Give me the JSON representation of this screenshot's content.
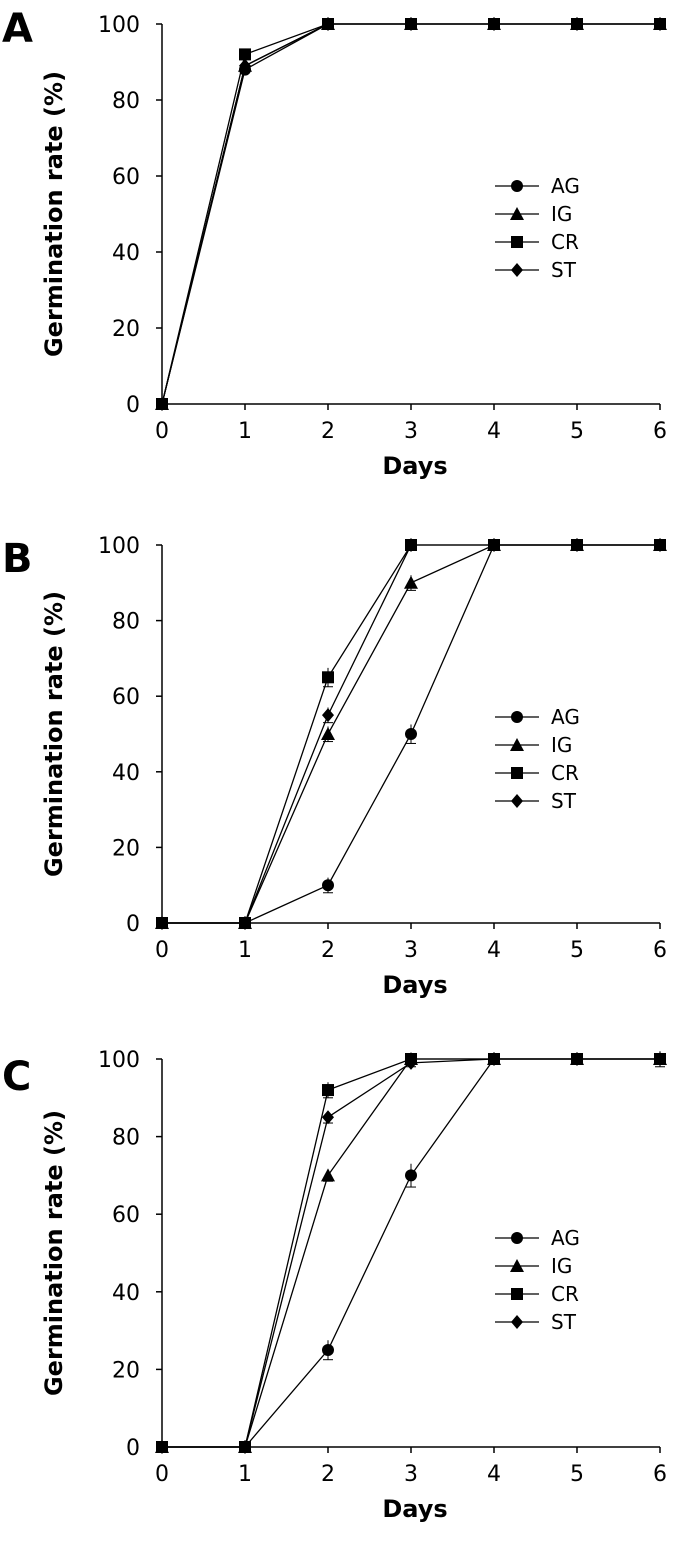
{
  "chart_data": [
    {
      "type": "line",
      "panel": "A",
      "xlabel": "Days",
      "ylabel": "Germination rate (%)",
      "x": [
        0,
        1,
        2,
        3,
        4,
        5,
        6
      ],
      "xticks": [
        "0",
        "1",
        "2",
        "3",
        "4",
        "5",
        "6"
      ],
      "yticks": [
        "0",
        "20",
        "40",
        "60",
        "80",
        "100"
      ],
      "xlim": [
        0,
        6
      ],
      "ylim": [
        0,
        100
      ],
      "grid": false,
      "legend_position": "right-middle",
      "series": [
        {
          "name": "AG",
          "marker": "circle",
          "values": [
            0,
            88,
            100,
            100,
            100,
            100,
            100
          ]
        },
        {
          "name": "IG",
          "marker": "triangle",
          "values": [
            0,
            89,
            100,
            100,
            100,
            100,
            100
          ]
        },
        {
          "name": "CR",
          "marker": "square",
          "values": [
            0,
            92,
            100,
            100,
            100,
            100,
            100
          ]
        },
        {
          "name": "ST",
          "marker": "diamond",
          "values": [
            0,
            89,
            100,
            100,
            100,
            100,
            100
          ]
        }
      ]
    },
    {
      "type": "line",
      "panel": "B",
      "xlabel": "Days",
      "ylabel": "Germination rate (%)",
      "x": [
        0,
        1,
        2,
        3,
        4,
        5,
        6
      ],
      "xticks": [
        "0",
        "1",
        "2",
        "3",
        "4",
        "5",
        "6"
      ],
      "yticks": [
        "0",
        "20",
        "40",
        "60",
        "80",
        "100"
      ],
      "xlim": [
        0,
        6
      ],
      "ylim": [
        0,
        100
      ],
      "grid": false,
      "legend_position": "right-middle",
      "series": [
        {
          "name": "AG",
          "marker": "circle",
          "values": [
            0,
            0,
            10,
            50,
            100,
            100,
            100
          ],
          "errors": [
            0,
            0,
            2,
            2.5,
            0,
            0,
            0
          ]
        },
        {
          "name": "IG",
          "marker": "triangle",
          "values": [
            0,
            0,
            50,
            90,
            100,
            100,
            100
          ],
          "errors": [
            0,
            0,
            2,
            2,
            0,
            0,
            0
          ]
        },
        {
          "name": "CR",
          "marker": "square",
          "values": [
            0,
            0,
            65,
            100,
            100,
            100,
            100
          ],
          "errors": [
            0,
            0,
            2.5,
            0,
            0,
            0,
            0
          ]
        },
        {
          "name": "ST",
          "marker": "diamond",
          "values": [
            0,
            0,
            55,
            100,
            100,
            100,
            100
          ],
          "errors": [
            0,
            0,
            2,
            0,
            0,
            0,
            0
          ]
        }
      ]
    },
    {
      "type": "line",
      "panel": "C",
      "xlabel": "Days",
      "ylabel": "Germination rate (%)",
      "x": [
        0,
        1,
        2,
        3,
        4,
        5,
        6
      ],
      "xticks": [
        "0",
        "1",
        "2",
        "3",
        "4",
        "5",
        "6"
      ],
      "yticks": [
        "0",
        "20",
        "40",
        "60",
        "80",
        "100"
      ],
      "xlim": [
        0,
        6
      ],
      "ylim": [
        0,
        100
      ],
      "grid": false,
      "legend_position": "right-middle",
      "series": [
        {
          "name": "AG",
          "marker": "circle",
          "values": [
            0,
            0,
            25,
            70,
            100,
            100,
            100
          ],
          "errors": [
            0,
            0,
            2.5,
            3,
            0,
            0,
            0
          ]
        },
        {
          "name": "IG",
          "marker": "triangle",
          "values": [
            0,
            0,
            70,
            100,
            100,
            100,
            100
          ],
          "errors": [
            0,
            0,
            1.5,
            0,
            0,
            0,
            0
          ]
        },
        {
          "name": "CR",
          "marker": "square",
          "values": [
            0,
            0,
            92,
            100,
            100,
            100,
            100
          ],
          "errors": [
            0,
            0,
            2,
            0,
            0,
            0,
            2
          ]
        },
        {
          "name": "ST",
          "marker": "diamond",
          "values": [
            0,
            0,
            85,
            99,
            100,
            100,
            100
          ],
          "errors": [
            0,
            0,
            1.5,
            1,
            0,
            0,
            0
          ]
        }
      ]
    }
  ]
}
